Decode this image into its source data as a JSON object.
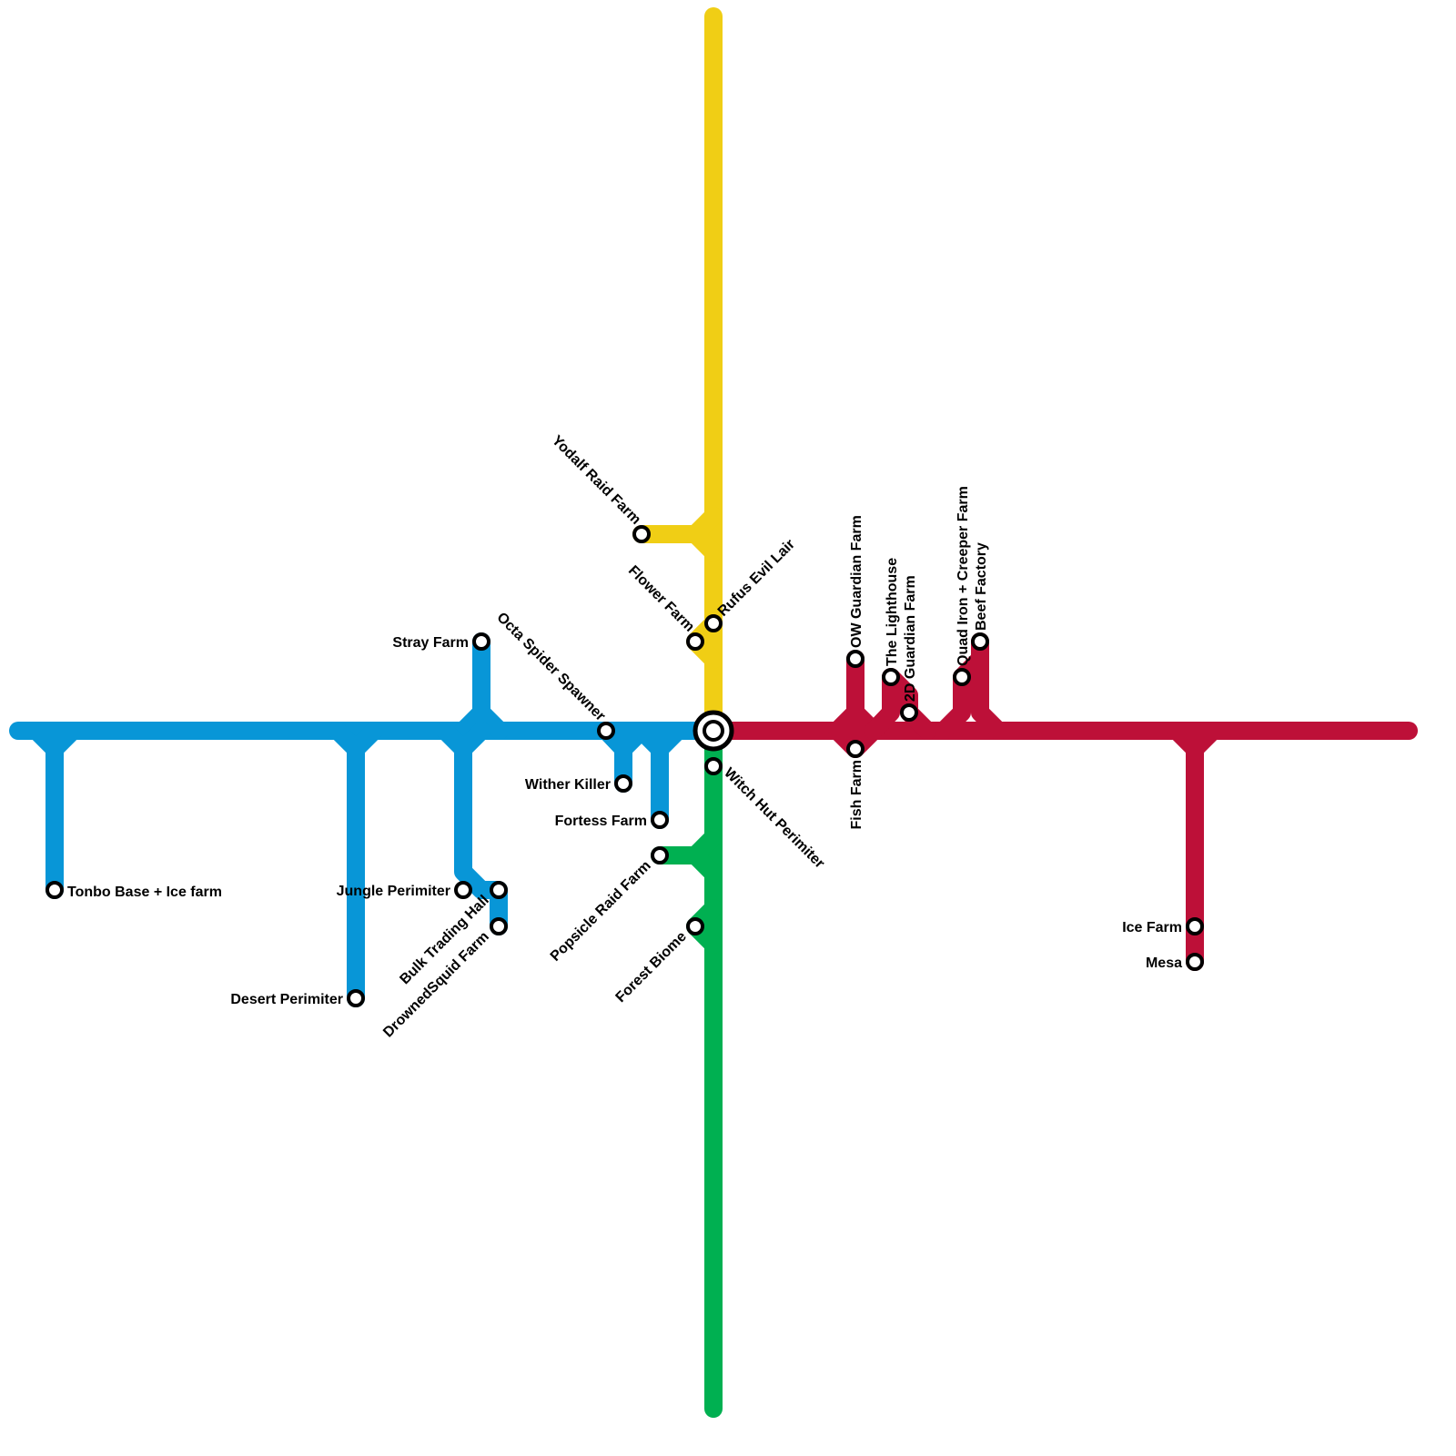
{
  "colors": {
    "blue": "#0896d7",
    "yellow": "#f0ce15",
    "green": "#00b051",
    "red": "#bd1038"
  },
  "stations": {
    "tonbo": "Tonbo Base + Ice farm",
    "desert": "Desert Perimiter",
    "jungle": "Jungle Perimiter",
    "stray": "Stray Farm",
    "bulk": "Bulk Trading Hall",
    "drowned": "DrownedSquid Farm",
    "octa": "Octa Spider Spawner",
    "wither": "Wither Killer",
    "fortess": "Fortess Farm",
    "yodalf": "Yodalf Raid Farm",
    "flower": "Flower Farm",
    "rufus": "Rufus Evil Lair",
    "witch": "Witch Hut Perimiter",
    "popsicle": "Popsicle Raid Farm",
    "forest": "Forest Biome",
    "ow": "OW Guardian Farm",
    "fish": "Fish Farm",
    "lighthouse": "The Lighthouse",
    "guardian2d": "2D Guardian Farm",
    "quad": "Quad Iron + Creeper Farm",
    "beef": "Beef Factory",
    "ice": "Ice Farm",
    "mesa": "Mesa"
  }
}
